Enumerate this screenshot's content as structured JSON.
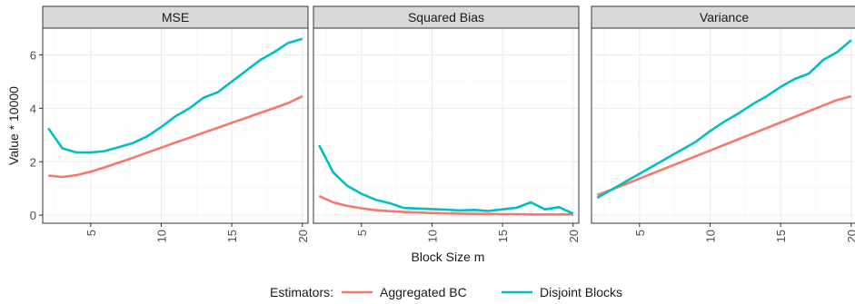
{
  "chart_data": {
    "type": "line",
    "xlabel": "Block Size m",
    "ylabel": "Value * 10000",
    "xlim": [
      1.6,
      20.4
    ],
    "ylim": [
      -0.3,
      7.0
    ],
    "x_ticks": [
      5,
      10,
      15,
      20
    ],
    "y_ticks": [
      0,
      2,
      4,
      6
    ],
    "grid": true,
    "legend": {
      "title": "Estimators:",
      "position": "bottom"
    },
    "colors": {
      "Aggregated BC": "#F8766D",
      "Disjoint Blocks": "#00BFC4"
    },
    "x": [
      2,
      3,
      4,
      5,
      6,
      7,
      8,
      9,
      10,
      11,
      12,
      13,
      14,
      15,
      16,
      17,
      18,
      19,
      20
    ],
    "panels": [
      {
        "title": "MSE",
        "series": [
          {
            "name": "Aggregated BC",
            "values": [
              1.48,
              1.43,
              1.5,
              1.63,
              1.79,
              1.97,
              2.15,
              2.34,
              2.53,
              2.72,
              2.9,
              3.09,
              3.27,
              3.46,
              3.64,
              3.83,
              4.01,
              4.2,
              4.45
            ]
          },
          {
            "name": "Disjoint Blocks",
            "values": [
              3.25,
              2.5,
              2.35,
              2.35,
              2.4,
              2.55,
              2.7,
              2.95,
              3.3,
              3.7,
              4.0,
              4.4,
              4.6,
              5.0,
              5.4,
              5.8,
              6.1,
              6.45,
              6.6
            ]
          }
        ]
      },
      {
        "title": "Squared Bias",
        "series": [
          {
            "name": "Aggregated BC",
            "values": [
              0.72,
              0.48,
              0.35,
              0.26,
              0.19,
              0.15,
              0.12,
              0.1,
              0.08,
              0.07,
              0.06,
              0.05,
              0.05,
              0.04,
              0.04,
              0.03,
              0.03,
              0.03,
              0.03
            ]
          },
          {
            "name": "Disjoint Blocks",
            "values": [
              2.62,
              1.6,
              1.1,
              0.8,
              0.58,
              0.45,
              0.27,
              0.25,
              0.23,
              0.21,
              0.18,
              0.2,
              0.16,
              0.22,
              0.28,
              0.48,
              0.22,
              0.3,
              0.06
            ]
          }
        ]
      },
      {
        "title": "Variance",
        "series": [
          {
            "name": "Aggregated BC",
            "values": [
              0.76,
              0.95,
              1.16,
              1.37,
              1.58,
              1.79,
              2.0,
              2.21,
              2.42,
              2.63,
              2.84,
              3.05,
              3.26,
              3.47,
              3.68,
              3.89,
              4.1,
              4.31,
              4.45
            ]
          },
          {
            "name": "Disjoint Blocks",
            "values": [
              0.65,
              0.95,
              1.25,
              1.55,
              1.85,
              2.15,
              2.45,
              2.75,
              3.15,
              3.5,
              3.8,
              4.15,
              4.45,
              4.8,
              5.1,
              5.3,
              5.8,
              6.1,
              6.55
            ]
          }
        ]
      }
    ]
  }
}
